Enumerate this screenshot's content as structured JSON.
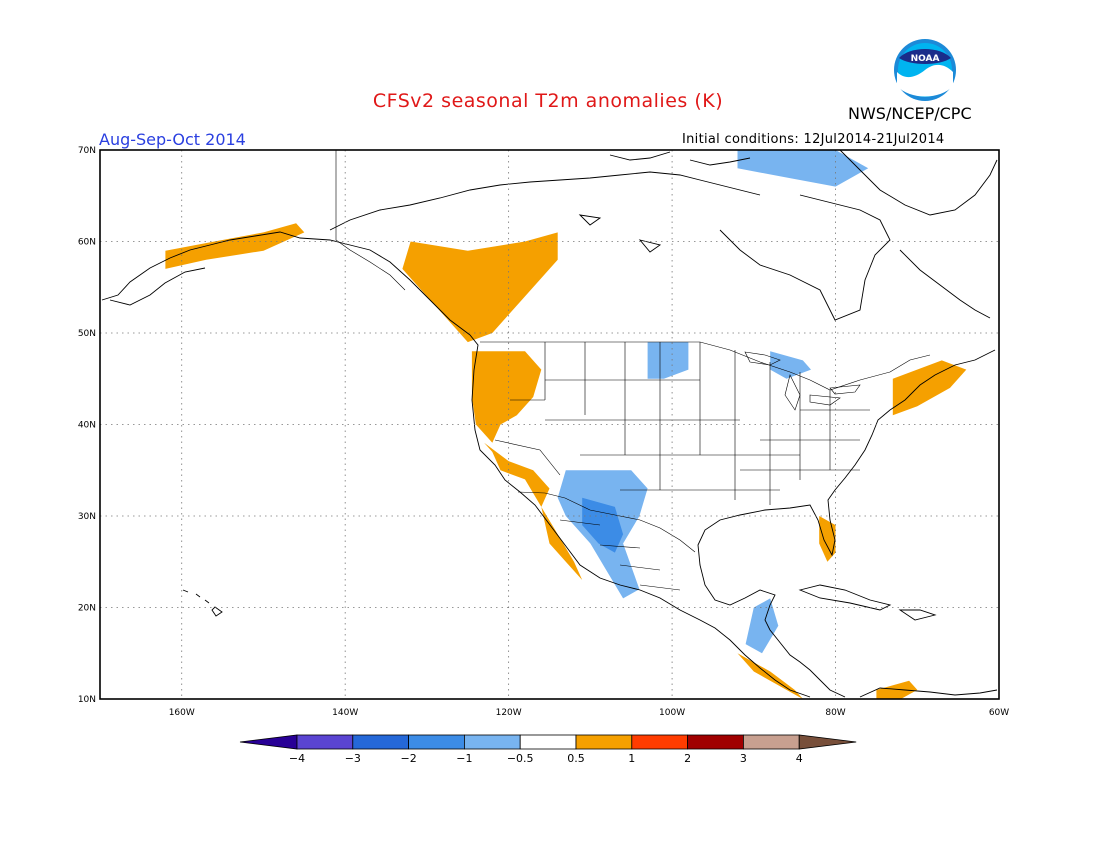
{
  "header": {
    "title": "CFSv2 seasonal T2m anomalies (K)",
    "agency": "NWS/NCEP/CPC",
    "season": "Aug-Sep-Oct 2014",
    "initial_conditions": "Initial conditions: 12Jul2014-21Jul2014",
    "logo_text": "NOAA"
  },
  "map": {
    "lon_range": [
      -170,
      -60
    ],
    "lat_range": [
      10,
      70
    ],
    "lon_ticks": [
      {
        "value": -160,
        "label": "160W"
      },
      {
        "value": -140,
        "label": "140W"
      },
      {
        "value": -120,
        "label": "120W"
      },
      {
        "value": -100,
        "label": "100W"
      },
      {
        "value": -80,
        "label": "80W"
      },
      {
        "value": -60,
        "label": "60W"
      }
    ],
    "lat_ticks": [
      {
        "value": 10,
        "label": "10N"
      },
      {
        "value": 20,
        "label": "20N"
      },
      {
        "value": 30,
        "label": "30N"
      },
      {
        "value": 40,
        "label": "40N"
      },
      {
        "value": 50,
        "label": "50N"
      },
      {
        "value": 60,
        "label": "60N"
      },
      {
        "value": 70,
        "label": "70N"
      }
    ],
    "grid": "dotted",
    "anomaly_regions": [
      {
        "name": "alaska-warm",
        "class": "0.5-1",
        "color": "#f5a000",
        "polygon": [
          [
            -162,
            59
          ],
          [
            -156,
            60
          ],
          [
            -150,
            61
          ],
          [
            -146,
            62
          ],
          [
            -145,
            61
          ],
          [
            -150,
            59
          ],
          [
            -157,
            58
          ],
          [
            -162,
            57
          ]
        ]
      },
      {
        "name": "western-canada-warm",
        "class": "0.5-1",
        "color": "#f5a000",
        "polygon": [
          [
            -132,
            60
          ],
          [
            -125,
            59
          ],
          [
            -118,
            60
          ],
          [
            -114,
            61
          ],
          [
            -114,
            58
          ],
          [
            -116,
            56
          ],
          [
            -118,
            54
          ],
          [
            -122,
            50
          ],
          [
            -125,
            49
          ],
          [
            -127,
            51
          ],
          [
            -130,
            54
          ],
          [
            -133,
            57
          ]
        ]
      },
      {
        "name": "pacific-northwest-warm",
        "class": "0.5-1",
        "color": "#f5a000",
        "polygon": [
          [
            -124.5,
            48
          ],
          [
            -118,
            48
          ],
          [
            -116,
            46
          ],
          [
            -117,
            43
          ],
          [
            -119,
            41
          ],
          [
            -121,
            40
          ],
          [
            -122,
            38
          ],
          [
            -124,
            40
          ],
          [
            -124.5,
            43
          ]
        ]
      },
      {
        "name": "california-coast-warm",
        "class": "0.5-1",
        "color": "#f5a000",
        "polygon": [
          [
            -123,
            38
          ],
          [
            -120,
            36
          ],
          [
            -117,
            35
          ],
          [
            -115,
            33
          ],
          [
            -116,
            31
          ],
          [
            -115,
            27
          ],
          [
            -113,
            25
          ],
          [
            -111,
            23
          ],
          [
            -112,
            25
          ],
          [
            -114,
            28
          ],
          [
            -116,
            31
          ],
          [
            -118,
            34
          ],
          [
            -121,
            35
          ],
          [
            -122,
            37
          ]
        ]
      },
      {
        "name": "southwest-cool",
        "class": "-1--0.5",
        "color": "#78b4f0",
        "polygon": [
          [
            -113,
            35
          ],
          [
            -105,
            35
          ],
          [
            -103,
            33
          ],
          [
            -104,
            30
          ],
          [
            -106,
            27
          ],
          [
            -104,
            22
          ],
          [
            -106,
            21
          ],
          [
            -108,
            24
          ],
          [
            -110,
            27
          ],
          [
            -113,
            30
          ],
          [
            -114,
            32
          ]
        ]
      },
      {
        "name": "mexico-cool-core",
        "class": "-2--1",
        "color": "#3c8ce6",
        "polygon": [
          [
            -111,
            32
          ],
          [
            -107,
            31
          ],
          [
            -106,
            28
          ],
          [
            -107,
            26
          ],
          [
            -109,
            27
          ],
          [
            -111,
            29
          ]
        ]
      },
      {
        "name": "northern-plains-cool",
        "class": "-1--0.5",
        "color": "#78b4f0",
        "polygon": [
          [
            -103,
            49
          ],
          [
            -98,
            49
          ],
          [
            -98,
            46
          ],
          [
            -101,
            45
          ],
          [
            -103,
            45
          ]
        ]
      },
      {
        "name": "great-lakes-cool",
        "class": "-1--0.5",
        "color": "#78b4f0",
        "polygon": [
          [
            -88,
            48
          ],
          [
            -84,
            47
          ],
          [
            -83,
            46
          ],
          [
            -86,
            45
          ],
          [
            -88,
            46
          ]
        ]
      },
      {
        "name": "arctic-cool",
        "class": "-1--0.5",
        "color": "#78b4f0",
        "polygon": [
          [
            -92,
            70
          ],
          [
            -80,
            70
          ],
          [
            -76,
            68
          ],
          [
            -80,
            66
          ],
          [
            -86,
            67
          ],
          [
            -92,
            68
          ]
        ]
      },
      {
        "name": "new-england-warm",
        "class": "0.5-1",
        "color": "#f5a000",
        "polygon": [
          [
            -73,
            45
          ],
          [
            -67,
            47
          ],
          [
            -64,
            46
          ],
          [
            -66,
            44
          ],
          [
            -70,
            42
          ],
          [
            -73,
            41
          ]
        ]
      },
      {
        "name": "florida-warm",
        "class": "0.5-1",
        "color": "#f5a000",
        "polygon": [
          [
            -82,
            30
          ],
          [
            -80,
            29
          ],
          [
            -80,
            26
          ],
          [
            -81,
            25
          ],
          [
            -82,
            27
          ]
        ]
      },
      {
        "name": "central-america-cool",
        "class": "-1--0.5",
        "color": "#78b4f0",
        "polygon": [
          [
            -90,
            20
          ],
          [
            -88,
            21
          ],
          [
            -87,
            18
          ],
          [
            -89,
            15
          ],
          [
            -91,
            16
          ]
        ]
      },
      {
        "name": "central-america-warm",
        "class": "0.5-1",
        "color": "#f5a000",
        "polygon": [
          [
            -92,
            15
          ],
          [
            -88,
            13
          ],
          [
            -85,
            11
          ],
          [
            -84,
            10
          ],
          [
            -86,
            11
          ],
          [
            -90,
            13
          ]
        ]
      },
      {
        "name": "colombia-warm",
        "class": "0.5-1",
        "color": "#f5a000",
        "polygon": [
          [
            -75,
            11
          ],
          [
            -71,
            12
          ],
          [
            -70,
            11
          ],
          [
            -72,
            10
          ],
          [
            -75,
            10
          ]
        ]
      }
    ]
  },
  "colorbar": {
    "colors": [
      "#280096",
      "#5a44d2",
      "#2568d8",
      "#3c8ce6",
      "#78b4f0",
      "#ffffff",
      "#f5a000",
      "#ff3c00",
      "#a00000",
      "#c8a090",
      "#784f3a"
    ],
    "labels": [
      "-4",
      "-3",
      "-2",
      "-1",
      "-0.5",
      "0.5",
      "1",
      "2",
      "3",
      "4"
    ]
  }
}
